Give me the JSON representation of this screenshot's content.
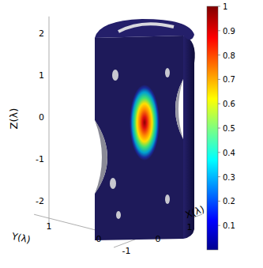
{
  "chart_data": {
    "type": "3d_field",
    "x_label": "X(λ)",
    "y_label": "Y(λ)",
    "z_label": "Z(λ)",
    "xlim": [
      -1.4,
      1.4
    ],
    "xticks": [
      -1,
      0,
      1
    ],
    "ylim": [
      -0.2,
      1.3
    ],
    "yticks": [
      0,
      1
    ],
    "zlim": [
      -2.6,
      2.4
    ],
    "zticks": [
      -2,
      -1,
      0,
      1,
      2
    ],
    "colorbar": {
      "range": [
        0,
        1
      ],
      "ticks": [
        0.1,
        0.2,
        0.3,
        0.4,
        0.5,
        0.6,
        0.7,
        0.8,
        0.9,
        1
      ]
    }
  }
}
